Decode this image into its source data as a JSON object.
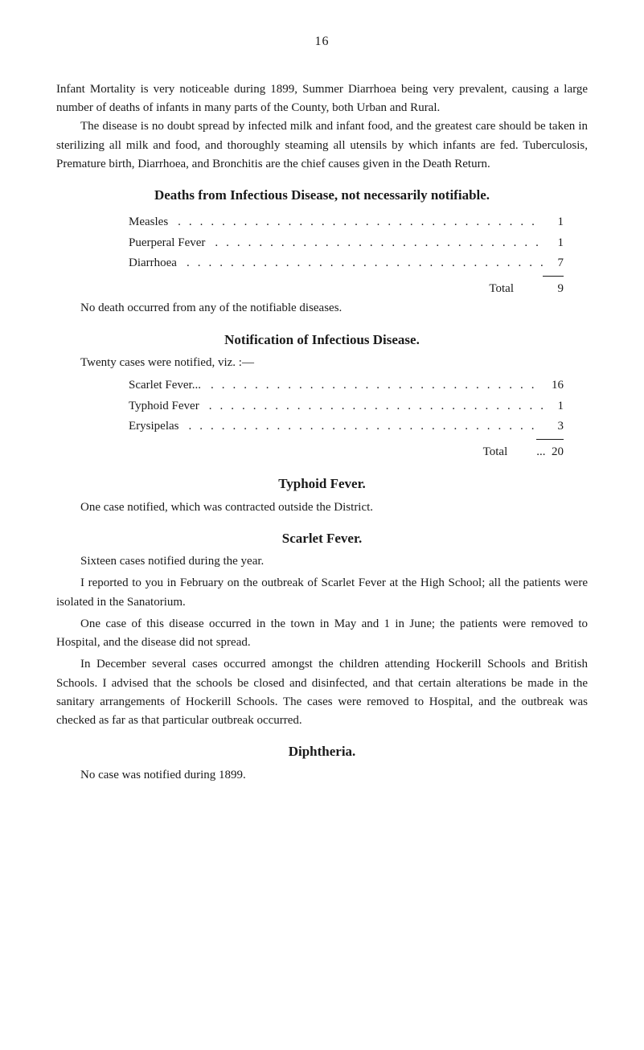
{
  "pageNumber": "16",
  "paragraphs": {
    "intro1": "Infant Mortality is very noticeable during 1899, Summer Diarrhoea being very prevalent, causing a large number of deaths of infants in many parts of the County, both Urban and Rural.",
    "intro2": "The disease is no doubt spread by infected milk and infant food, and the greatest care should be taken in sterilizing all milk and food, and thoroughly steaming all utensils by which infants are fed. Tuberculosis, Premature birth, Diarrhoea, and Bronchitis are the chief causes given in the Death Return."
  },
  "deathsSection": {
    "heading": "Deaths from Infectious Disease, not necessarily notifiable.",
    "rows": [
      {
        "label": "Measles",
        "value": "1"
      },
      {
        "label": "Puerperal Fever",
        "value": "1"
      },
      {
        "label": "Diarrhoea",
        "value": "7"
      }
    ],
    "totalLabel": "Total",
    "totalValue": "9",
    "afterText": "No death occurred from any of the notifiable diseases."
  },
  "notificationSection": {
    "heading": "Notification of Infectious Disease.",
    "lead": "Twenty cases were notified, viz. :—",
    "rows": [
      {
        "label": "Scarlet Fever...",
        "value": "16"
      },
      {
        "label": "Typhoid Fever",
        "value": "1"
      },
      {
        "label": "Erysipelas",
        "value": "3"
      }
    ],
    "totalLabel": "Total",
    "totalValue": "20"
  },
  "typhoidSection": {
    "heading": "Typhoid Fever.",
    "text": "One case notified, which was contracted outside the District."
  },
  "scarletSection": {
    "heading": "Scarlet Fever.",
    "p1": "Sixteen cases notified during the year.",
    "p2": "I reported to you in February on the outbreak of Scarlet Fever at the High School; all the patients were isolated in the Sanatorium.",
    "p3": "One case of this disease occurred in the town in May and 1 in June; the patients were removed to Hospital, and the disease did not spread.",
    "p4": "In December several cases occurred amongst the children attending Hockerill Schools and British Schools. I advised that the schools be closed and disinfected, and that certain alterations be made in the sanitary arrangements of Hockerill Schools. The cases were removed to Hospital, and the outbreak was checked as far as that particular outbreak occurred."
  },
  "diphtheriaSection": {
    "heading": "Diphtheria.",
    "text": "No case was notified during 1899."
  },
  "dotFill": "......................................."
}
